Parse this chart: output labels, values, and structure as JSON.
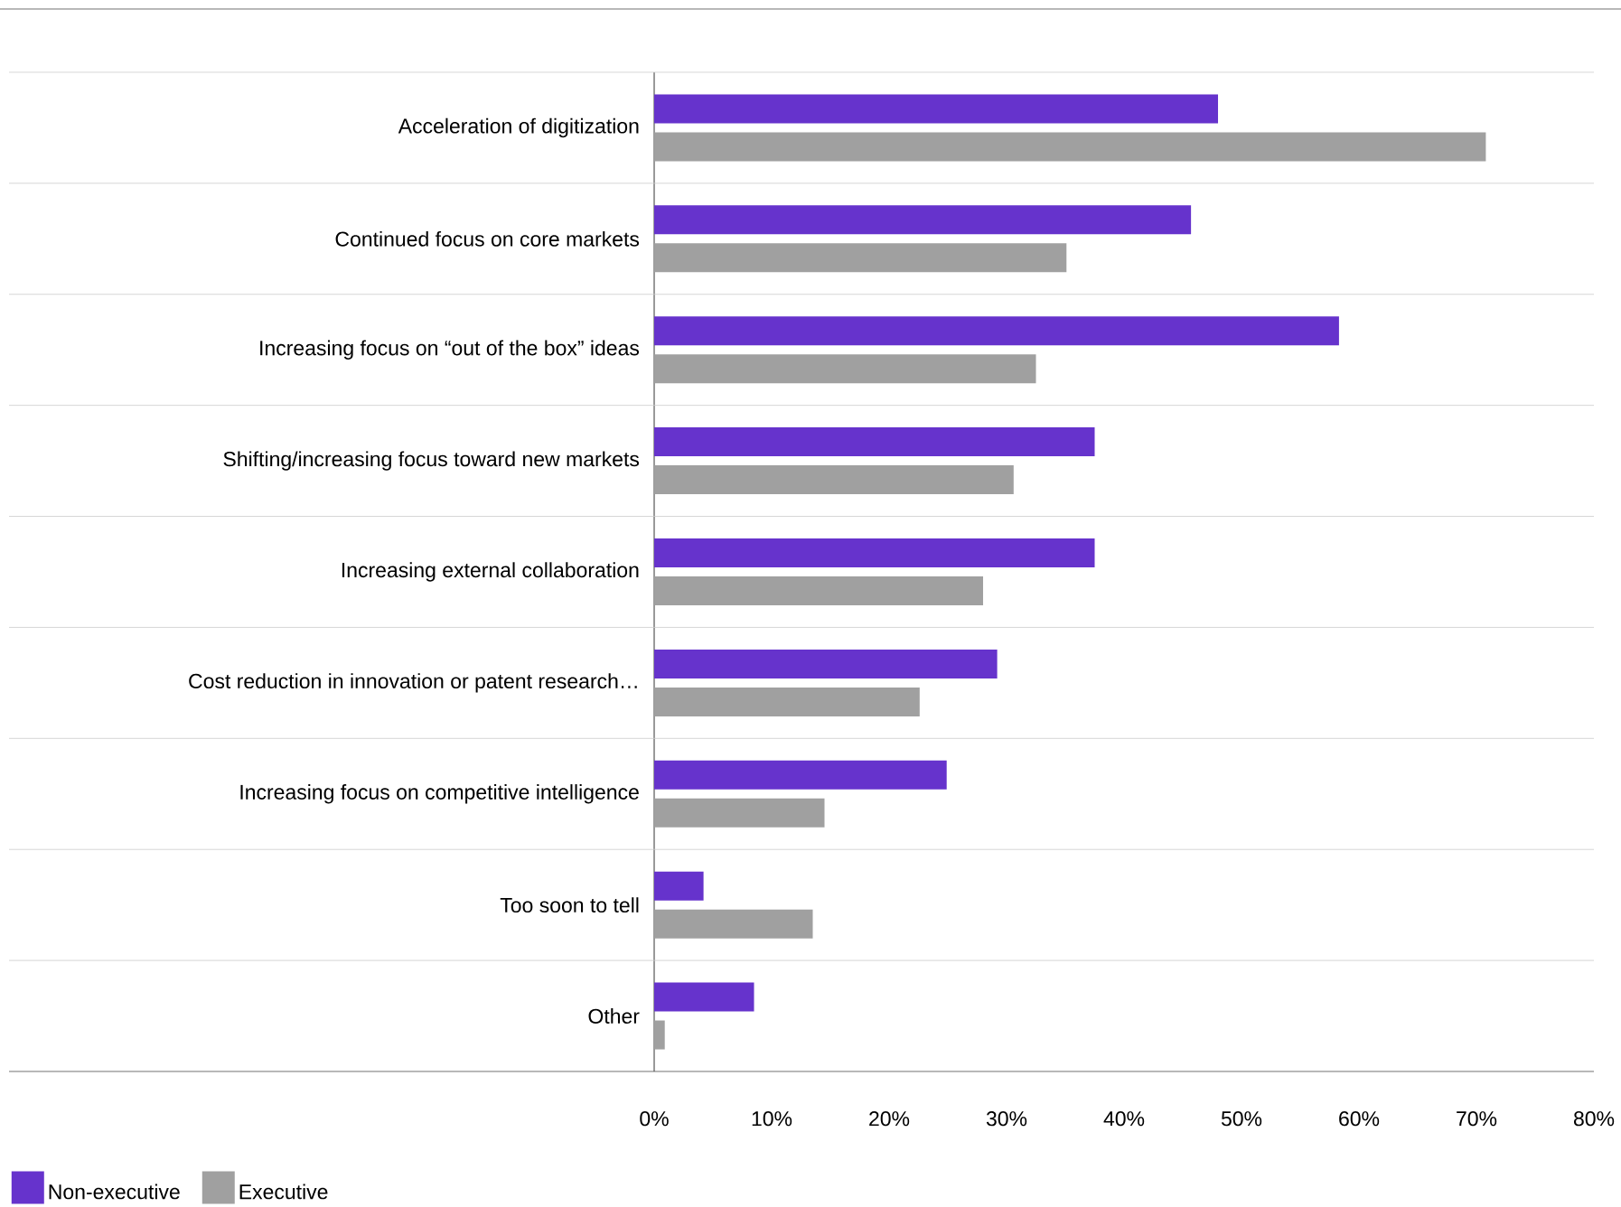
{
  "chart_data": {
    "type": "bar",
    "orientation": "horizontal",
    "categories": [
      "Acceleration of digitization",
      "Continued focus on core markets",
      "Increasing focus on “out of the box” ideas",
      "Shifting/increasing focus toward new markets",
      "Increasing external collaboration",
      "Cost reduction in innovation or patent research…",
      "Increasing focus on competitive intelligence",
      "Too soon to tell",
      "Other"
    ],
    "series": [
      {
        "name": "Non-executive",
        "color": "#6633cc",
        "values": [
          48,
          45.7,
          58.3,
          37.5,
          37.5,
          29.2,
          24.9,
          4.2,
          8.5
        ]
      },
      {
        "name": "Executive",
        "color": "#a0a0a0",
        "values": [
          70.8,
          35.1,
          32.5,
          30.6,
          28,
          22.6,
          14.5,
          13.5,
          0.9
        ]
      }
    ],
    "xlim": [
      0,
      80
    ],
    "xticks": [
      {
        "value": 0,
        "label": "0%"
      },
      {
        "value": 10,
        "label": "10%"
      },
      {
        "value": 20,
        "label": "20%"
      },
      {
        "value": 30,
        "label": "30%"
      },
      {
        "value": 40,
        "label": "40%"
      },
      {
        "value": 50,
        "label": "50%"
      },
      {
        "value": 60,
        "label": "60%"
      },
      {
        "value": 70,
        "label": "70%"
      },
      {
        "value": 80,
        "label": "80%"
      }
    ],
    "grid": "y",
    "legend": "bottom left"
  }
}
